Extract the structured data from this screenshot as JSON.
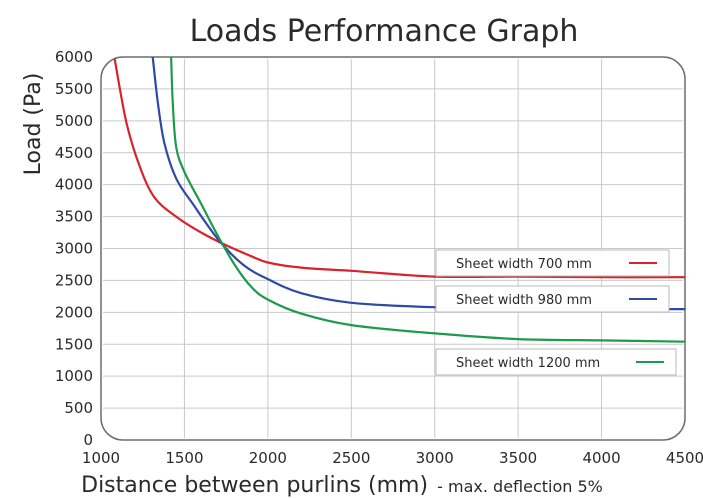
{
  "chart_data": {
    "type": "line",
    "title": "Loads Performance Graph",
    "xlabel": "Distance between purlins (mm)",
    "xlabel_note": "- max. deflection 5%",
    "ylabel": "Load (Pa)",
    "xlim": [
      1000,
      4500
    ],
    "ylim": [
      0,
      6000
    ],
    "x_ticks": [
      "1000",
      "1500",
      "2000",
      "2500",
      "3000",
      "3500",
      "4000",
      "4500"
    ],
    "y_ticks": [
      "0",
      "500",
      "1000",
      "1500",
      "2000",
      "2500",
      "3000",
      "3500",
      "4000",
      "4500",
      "5000",
      "5500",
      "6000"
    ],
    "grid": true,
    "legend": "right",
    "series": [
      {
        "name": "Sheet width 700 mm",
        "color": "#d8232a",
        "points": [
          [
            1080,
            6000
          ],
          [
            1150,
            5000
          ],
          [
            1230,
            4300
          ],
          [
            1320,
            3800
          ],
          [
            1450,
            3500
          ],
          [
            1600,
            3250
          ],
          [
            1750,
            3050
          ],
          [
            1900,
            2880
          ],
          [
            2000,
            2780
          ],
          [
            2200,
            2700
          ],
          [
            2500,
            2650
          ],
          [
            3000,
            2560
          ],
          [
            3500,
            2560
          ],
          [
            4000,
            2550
          ],
          [
            4500,
            2550
          ]
        ]
      },
      {
        "name": "Sheet width 980 mm",
        "color": "#2e4aa3",
        "points": [
          [
            1310,
            6000
          ],
          [
            1340,
            5300
          ],
          [
            1380,
            4650
          ],
          [
            1450,
            4100
          ],
          [
            1550,
            3700
          ],
          [
            1700,
            3150
          ],
          [
            1850,
            2750
          ],
          [
            2000,
            2520
          ],
          [
            2200,
            2300
          ],
          [
            2500,
            2150
          ],
          [
            3000,
            2080
          ],
          [
            3500,
            2060
          ],
          [
            4000,
            2050
          ],
          [
            4500,
            2050
          ]
        ]
      },
      {
        "name": "Sheet width 1200 mm",
        "color": "#1d9a4b",
        "points": [
          [
            1420,
            6000
          ],
          [
            1430,
            5300
          ],
          [
            1450,
            4600
          ],
          [
            1500,
            4200
          ],
          [
            1600,
            3700
          ],
          [
            1700,
            3200
          ],
          [
            1800,
            2750
          ],
          [
            1900,
            2400
          ],
          [
            2000,
            2200
          ],
          [
            2200,
            1980
          ],
          [
            2500,
            1800
          ],
          [
            3000,
            1670
          ],
          [
            3500,
            1580
          ],
          [
            4000,
            1560
          ],
          [
            4500,
            1540
          ]
        ]
      }
    ]
  }
}
